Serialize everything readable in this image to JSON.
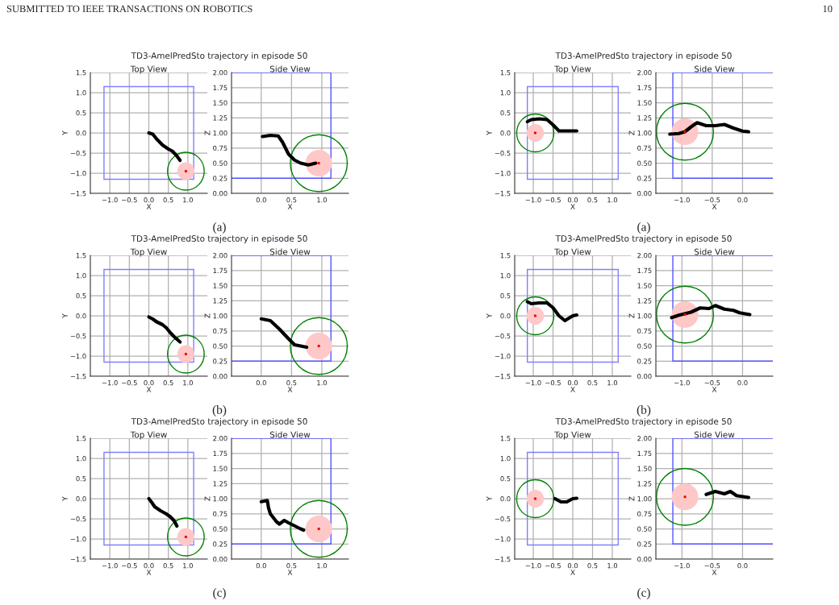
{
  "chart_data": [
    {
      "type": "line",
      "title": "TD3-AmelPredSto trajectory in episode 50",
      "subtitle": "Top View",
      "xlabel": "X",
      "ylabel": "Y",
      "annotations": [
        "SUBMITTED TO IEEE TRANSACTIONS ON ROBOTICS",
        "(a)"
      ],
      "grid": true,
      "xlim": [
        -1.5,
        1.5
      ],
      "ylim": [
        -1.5,
        1.5
      ],
      "xticks": [
        {
          "value": -1,
          "label": "−1.0"
        },
        {
          "value": -0.5,
          "label": "−0.5"
        },
        {
          "value": 0,
          "label": "0.0"
        },
        {
          "value": 0.5,
          "label": "0.5"
        },
        {
          "value": 1,
          "label": "1.0"
        }
      ],
      "yticks": [
        {
          "value": -1.5,
          "label": "−1.5"
        },
        {
          "value": -1,
          "label": "−1.0"
        },
        {
          "value": -0.5,
          "label": "−0.5"
        },
        {
          "value": 0,
          "label": "0.0"
        },
        {
          "value": 0.5,
          "label": "0.5"
        },
        {
          "value": 1,
          "label": "1.0"
        },
        {
          "value": 1.5,
          "label": "1.5"
        }
      ],
      "series": [
        {
          "color": "#000000",
          "x": [
            0,
            0.1,
            0.2,
            0.35,
            0.5,
            0.6,
            0.7,
            0.8
          ],
          "values": [
            0,
            -0.03,
            -0.15,
            -0.3,
            -0.4,
            -0.45,
            -0.55,
            -0.68
          ]
        },
        {
          "type": "scatter",
          "color": "#ff0000",
          "x": [
            0.95
          ],
          "values": [
            -0.95
          ]
        }
      ]
    },
    {
      "type": "line",
      "subtitle": "Side View",
      "xlabel": "X",
      "ylabel": "Z",
      "grid": true,
      "xlim": [
        -0.49,
        1.44
      ],
      "ylim": [
        0,
        2
      ],
      "xticks": [
        {
          "value": 0,
          "label": "0.0"
        },
        {
          "value": 0.5,
          "label": "0.5"
        },
        {
          "value": 1,
          "label": "1.0"
        }
      ],
      "yticks": [
        {
          "value": 0,
          "label": "0.00"
        },
        {
          "value": 0.25,
          "label": "0.25"
        },
        {
          "value": 0.5,
          "label": "0.50"
        },
        {
          "value": 0.75,
          "label": "0.75"
        },
        {
          "value": 1,
          "label": "1.00"
        },
        {
          "value": 1.25,
          "label": "1.25"
        },
        {
          "value": 1.5,
          "label": "1.50"
        },
        {
          "value": 1.75,
          "label": "1.75"
        },
        {
          "value": 2,
          "label": "2.00"
        }
      ],
      "series": [
        {
          "color": "#000000",
          "x": [
            0.02,
            0.15,
            0.28,
            0.35,
            0.45,
            0.55,
            0.65,
            0.78,
            0.9
          ],
          "values": [
            0.94,
            0.96,
            0.95,
            0.85,
            0.65,
            0.55,
            0.5,
            0.47,
            0.5
          ]
        },
        {
          "type": "scatter",
          "color": "#ff0000",
          "x": [
            0.95
          ],
          "values": [
            0.5
          ]
        }
      ]
    },
    {
      "type": "line",
      "title": "TD3-AmelPredSto trajectory in episode 50",
      "subtitle": "Top View",
      "xlabel": "X",
      "ylabel": "Y",
      "annotations": [
        "10",
        "(a)"
      ],
      "grid": true,
      "xlim": [
        -1.47,
        1.47
      ],
      "ylim": [
        -1.5,
        1.5
      ],
      "xticks": [
        {
          "value": -1,
          "label": "−1.0"
        },
        {
          "value": -0.5,
          "label": "−0.5"
        },
        {
          "value": 0,
          "label": "0.0"
        },
        {
          "value": 0.5,
          "label": "0.5"
        },
        {
          "value": 1,
          "label": "1.0"
        }
      ],
      "yticks": [
        {
          "value": -1.5,
          "label": "−1.5"
        },
        {
          "value": -1,
          "label": "−1.0"
        },
        {
          "value": -0.5,
          "label": "−0.5"
        },
        {
          "value": 0,
          "label": "0.0"
        },
        {
          "value": 0.5,
          "label": "0.5"
        },
        {
          "value": 1,
          "label": "1.0"
        },
        {
          "value": 1.5,
          "label": "1.5"
        }
      ],
      "series": [
        {
          "color": "#000000",
          "x": [
            0.1,
            0,
            -0.2,
            -0.35,
            -0.5,
            -0.65,
            -0.85,
            -1.05,
            -1.15
          ],
          "values": [
            0.05,
            0.05,
            0.05,
            0.05,
            0.2,
            0.33,
            0.35,
            0.33,
            0.28
          ]
        },
        {
          "type": "scatter",
          "color": "#ff0000",
          "x": [
            -0.95
          ],
          "values": [
            0
          ]
        }
      ]
    },
    {
      "type": "line",
      "subtitle": "Side View",
      "xlabel": "X",
      "ylabel": "Z",
      "grid": true,
      "xlim": [
        -1.43,
        0.5
      ],
      "ylim": [
        0,
        2
      ],
      "xticks": [
        {
          "value": -1,
          "label": "−1.0"
        },
        {
          "value": -0.5,
          "label": "−0.5"
        },
        {
          "value": 0,
          "label": "0.0"
        }
      ],
      "yticks": [
        {
          "value": 0,
          "label": "0.00"
        },
        {
          "value": 0.25,
          "label": "0.25"
        },
        {
          "value": 0.5,
          "label": "0.50"
        },
        {
          "value": 0.75,
          "label": "0.75"
        },
        {
          "value": 1,
          "label": "1.00"
        },
        {
          "value": 1.25,
          "label": "1.25"
        },
        {
          "value": 1.5,
          "label": "1.50"
        },
        {
          "value": 1.75,
          "label": "1.75"
        },
        {
          "value": 2,
          "label": "2.00"
        }
      ],
      "series": [
        {
          "color": "#000000",
          "x": [
            -1.2,
            -1.05,
            -0.95,
            -0.85,
            -0.75,
            -0.6,
            -0.45,
            -0.3,
            -0.15,
            0,
            0.1
          ],
          "values": [
            0.98,
            0.99,
            1.02,
            1.1,
            1.17,
            1.12,
            1.12,
            1.14,
            1.08,
            1.03,
            1.02
          ]
        },
        {
          "type": "scatter",
          "color": "#ff0000",
          "x": [
            -0.95
          ],
          "values": [
            1.02
          ]
        }
      ]
    },
    {
      "type": "line",
      "title": "TD3-AmelPredSto trajectory in episode 50",
      "subtitle": "Top View",
      "xlabel": "X",
      "ylabel": "Y",
      "annotations": [
        "(b)"
      ],
      "grid": true,
      "xlim": [
        -1.5,
        1.5
      ],
      "ylim": [
        -1.5,
        1.5
      ],
      "xticks": [
        {
          "value": -1,
          "label": "−1.0"
        },
        {
          "value": -0.5,
          "label": "−0.5"
        },
        {
          "value": 0,
          "label": "0.0"
        },
        {
          "value": 0.5,
          "label": "0.5"
        },
        {
          "value": 1,
          "label": "1.0"
        }
      ],
      "yticks": [
        {
          "value": -1.5,
          "label": "−1.5"
        },
        {
          "value": -1,
          "label": "−1.0"
        },
        {
          "value": -0.5,
          "label": "−0.5"
        },
        {
          "value": 0,
          "label": "0.0"
        },
        {
          "value": 0.5,
          "label": "0.5"
        },
        {
          "value": 1,
          "label": "1.0"
        },
        {
          "value": 1.5,
          "label": "1.5"
        }
      ],
      "series": [
        {
          "color": "#000000",
          "x": [
            0,
            0.1,
            0.2,
            0.35,
            0.45,
            0.55,
            0.65,
            0.8
          ],
          "values": [
            -0.03,
            -0.08,
            -0.15,
            -0.22,
            -0.3,
            -0.42,
            -0.52,
            -0.65
          ]
        },
        {
          "type": "scatter",
          "color": "#ff0000",
          "x": [
            0.95
          ],
          "values": [
            -0.95
          ]
        }
      ]
    },
    {
      "type": "line",
      "subtitle": "Side View",
      "xlabel": "X",
      "ylabel": "Z",
      "grid": true,
      "xlim": [
        -0.49,
        1.44
      ],
      "ylim": [
        0,
        2
      ],
      "xticks": [
        {
          "value": 0,
          "label": "0.0"
        },
        {
          "value": 0.5,
          "label": "0.5"
        },
        {
          "value": 1,
          "label": "1.0"
        }
      ],
      "yticks": [
        {
          "value": 0,
          "label": "0.00"
        },
        {
          "value": 0.25,
          "label": "0.25"
        },
        {
          "value": 0.5,
          "label": "0.50"
        },
        {
          "value": 0.75,
          "label": "0.75"
        },
        {
          "value": 1,
          "label": "1.00"
        },
        {
          "value": 1.25,
          "label": "1.25"
        },
        {
          "value": 1.5,
          "label": "1.50"
        },
        {
          "value": 1.75,
          "label": "1.75"
        },
        {
          "value": 2,
          "label": "2.00"
        }
      ],
      "series": [
        {
          "color": "#000000",
          "x": [
            0,
            0.15,
            0.3,
            0.45,
            0.55,
            0.65,
            0.75
          ],
          "values": [
            0.95,
            0.92,
            0.78,
            0.62,
            0.52,
            0.5,
            0.48
          ]
        },
        {
          "type": "scatter",
          "color": "#ff0000",
          "x": [
            0.95
          ],
          "values": [
            0.5
          ]
        }
      ]
    },
    {
      "type": "line",
      "title": "TD3-AmelPredSto trajectory in episode 50",
      "subtitle": "Top View",
      "xlabel": "X",
      "ylabel": "Y",
      "annotations": [
        "(b)"
      ],
      "grid": true,
      "xlim": [
        -1.47,
        1.47
      ],
      "ylim": [
        -1.5,
        1.5
      ],
      "xticks": [
        {
          "value": -1,
          "label": "−1.0"
        },
        {
          "value": -0.5,
          "label": "−0.5"
        },
        {
          "value": 0,
          "label": "0.0"
        },
        {
          "value": 0.5,
          "label": "0.5"
        },
        {
          "value": 1,
          "label": "1.0"
        }
      ],
      "yticks": [
        {
          "value": -1.5,
          "label": "−1.5"
        },
        {
          "value": -1,
          "label": "−1.0"
        },
        {
          "value": -0.5,
          "label": "−0.5"
        },
        {
          "value": 0,
          "label": "0.0"
        },
        {
          "value": 0.5,
          "label": "0.5"
        },
        {
          "value": 1,
          "label": "1.0"
        },
        {
          "value": 1.5,
          "label": "1.5"
        }
      ],
      "series": [
        {
          "color": "#000000",
          "x": [
            0.1,
            0,
            -0.2,
            -0.35,
            -0.5,
            -0.65,
            -0.85,
            -1.05,
            -1.15
          ],
          "values": [
            0.02,
            0,
            -0.12,
            0,
            0.2,
            0.32,
            0.32,
            0.3,
            0.35
          ]
        },
        {
          "type": "scatter",
          "color": "#ff0000",
          "x": [
            -0.95
          ],
          "values": [
            0
          ]
        }
      ]
    },
    {
      "type": "line",
      "subtitle": "Side View",
      "xlabel": "X",
      "ylabel": "Z",
      "grid": true,
      "xlim": [
        -1.43,
        0.5
      ],
      "ylim": [
        0,
        2
      ],
      "xticks": [
        {
          "value": -1,
          "label": "−1.0"
        },
        {
          "value": -0.5,
          "label": "−0.5"
        },
        {
          "value": 0,
          "label": "0.0"
        }
      ],
      "yticks": [
        {
          "value": 0,
          "label": "0.00"
        },
        {
          "value": 0.25,
          "label": "0.25"
        },
        {
          "value": 0.5,
          "label": "0.50"
        },
        {
          "value": 0.75,
          "label": "0.75"
        },
        {
          "value": 1,
          "label": "1.00"
        },
        {
          "value": 1.25,
          "label": "1.25"
        },
        {
          "value": 1.5,
          "label": "1.50"
        },
        {
          "value": 1.75,
          "label": "1.75"
        },
        {
          "value": 2,
          "label": "2.00"
        }
      ],
      "series": [
        {
          "color": "#000000",
          "x": [
            -1.17,
            -1.05,
            -0.85,
            -0.7,
            -0.55,
            -0.45,
            -0.3,
            -0.15,
            -0.05,
            0.12
          ],
          "values": [
            0.97,
            1.01,
            1.06,
            1.13,
            1.12,
            1.17,
            1.11,
            1.09,
            1.05,
            1.02
          ]
        },
        {
          "type": "scatter",
          "color": "#ff0000",
          "x": [
            -0.95
          ],
          "values": [
            1.02
          ]
        }
      ]
    },
    {
      "type": "line",
      "title": "TD3-AmelPredSto trajectory in episode 50",
      "subtitle": "Top View",
      "xlabel": "X",
      "ylabel": "Y",
      "annotations": [
        "(c)"
      ],
      "grid": true,
      "xlim": [
        -1.5,
        1.5
      ],
      "ylim": [
        -1.5,
        1.5
      ],
      "xticks": [
        {
          "value": -1,
          "label": "−1.0"
        },
        {
          "value": -0.5,
          "label": "−0.5"
        },
        {
          "value": 0,
          "label": "0.0"
        },
        {
          "value": 0.5,
          "label": "0.5"
        },
        {
          "value": 1,
          "label": "1.0"
        }
      ],
      "yticks": [
        {
          "value": -1.5,
          "label": "−1.5"
        },
        {
          "value": -1,
          "label": "−1.0"
        },
        {
          "value": -0.5,
          "label": "−0.5"
        },
        {
          "value": 0,
          "label": "0.0"
        },
        {
          "value": 0.5,
          "label": "0.5"
        },
        {
          "value": 1,
          "label": "1.0"
        },
        {
          "value": 1.5,
          "label": "1.5"
        }
      ],
      "series": [
        {
          "color": "#000000",
          "x": [
            0,
            0.08,
            0.15,
            0.3,
            0.45,
            0.55,
            0.65,
            0.72
          ],
          "values": [
            0,
            -0.1,
            -0.2,
            -0.3,
            -0.38,
            -0.45,
            -0.55,
            -0.68
          ]
        },
        {
          "type": "scatter",
          "color": "#ff0000",
          "x": [
            0.95
          ],
          "values": [
            -0.95
          ]
        }
      ]
    },
    {
      "type": "line",
      "subtitle": "Side View",
      "xlabel": "X",
      "ylabel": "Z",
      "grid": true,
      "xlim": [
        -0.49,
        1.44
      ],
      "ylim": [
        0,
        2
      ],
      "xticks": [
        {
          "value": 0,
          "label": "0.0"
        },
        {
          "value": 0.5,
          "label": "0.5"
        },
        {
          "value": 1,
          "label": "1.0"
        }
      ],
      "yticks": [
        {
          "value": 0,
          "label": "0.00"
        },
        {
          "value": 0.25,
          "label": "0.25"
        },
        {
          "value": 0.5,
          "label": "0.50"
        },
        {
          "value": 0.75,
          "label": "0.75"
        },
        {
          "value": 1,
          "label": "1.00"
        },
        {
          "value": 1.25,
          "label": "1.25"
        },
        {
          "value": 1.5,
          "label": "1.50"
        },
        {
          "value": 1.75,
          "label": "1.75"
        },
        {
          "value": 2,
          "label": "2.00"
        }
      ],
      "series": [
        {
          "color": "#000000",
          "x": [
            0,
            0.1,
            0.12,
            0.15,
            0.25,
            0.3,
            0.38,
            0.45,
            0.55,
            0.65,
            0.7
          ],
          "values": [
            0.95,
            0.97,
            0.85,
            0.75,
            0.62,
            0.58,
            0.64,
            0.6,
            0.55,
            0.5,
            0.48
          ]
        },
        {
          "type": "scatter",
          "color": "#ff0000",
          "x": [
            0.95
          ],
          "values": [
            0.5
          ]
        }
      ]
    },
    {
      "type": "line",
      "title": "TD3-AmelPredSto trajectory in episode 50",
      "subtitle": "Top View",
      "xlabel": "X",
      "ylabel": "Y",
      "annotations": [
        "(c)"
      ],
      "grid": true,
      "xlim": [
        -1.47,
        1.47
      ],
      "ylim": [
        -1.5,
        1.5
      ],
      "xticks": [
        {
          "value": -1,
          "label": "−1.0"
        },
        {
          "value": -0.5,
          "label": "−0.5"
        },
        {
          "value": 0,
          "label": "0.0"
        },
        {
          "value": 0.5,
          "label": "0.5"
        },
        {
          "value": 1,
          "label": "1.0"
        }
      ],
      "yticks": [
        {
          "value": -1.5,
          "label": "−1.5"
        },
        {
          "value": -1,
          "label": "−1.0"
        },
        {
          "value": -0.5,
          "label": "−0.5"
        },
        {
          "value": 0,
          "label": "0.0"
        },
        {
          "value": 0.5,
          "label": "0.5"
        },
        {
          "value": 1,
          "label": "1.0"
        },
        {
          "value": 1.5,
          "label": "1.5"
        }
      ],
      "series": [
        {
          "color": "#000000",
          "x": [
            0.1,
            0,
            -0.15,
            -0.3,
            -0.45
          ],
          "values": [
            0.01,
            0,
            -0.08,
            -0.08,
            0
          ]
        },
        {
          "type": "scatter",
          "color": "#ff0000",
          "x": [
            -0.95
          ],
          "values": [
            0
          ]
        }
      ]
    },
    {
      "type": "line",
      "subtitle": "Side View",
      "xlabel": "X",
      "ylabel": "Z",
      "grid": true,
      "xlim": [
        -1.43,
        0.5
      ],
      "ylim": [
        0,
        2
      ],
      "xticks": [
        {
          "value": -1,
          "label": "−1.0"
        },
        {
          "value": -0.5,
          "label": "−0.5"
        },
        {
          "value": 0,
          "label": "0.0"
        }
      ],
      "yticks": [
        {
          "value": 0,
          "label": "0.00"
        },
        {
          "value": 0.25,
          "label": "0.25"
        },
        {
          "value": 0.5,
          "label": "0.50"
        },
        {
          "value": 0.75,
          "label": "0.75"
        },
        {
          "value": 1,
          "label": "1.00"
        },
        {
          "value": 1.25,
          "label": "1.25"
        },
        {
          "value": 1.5,
          "label": "1.50"
        },
        {
          "value": 1.75,
          "label": "1.75"
        },
        {
          "value": 2,
          "label": "2.00"
        }
      ],
      "series": [
        {
          "color": "#000000",
          "x": [
            -0.6,
            -0.45,
            -0.3,
            -0.2,
            -0.1,
            0.1
          ],
          "values": [
            1.07,
            1.12,
            1.08,
            1.12,
            1.05,
            1.02
          ]
        },
        {
          "type": "scatter",
          "color": "#ff0000",
          "x": [
            -0.95
          ],
          "values": [
            1.03
          ]
        }
      ]
    }
  ]
}
